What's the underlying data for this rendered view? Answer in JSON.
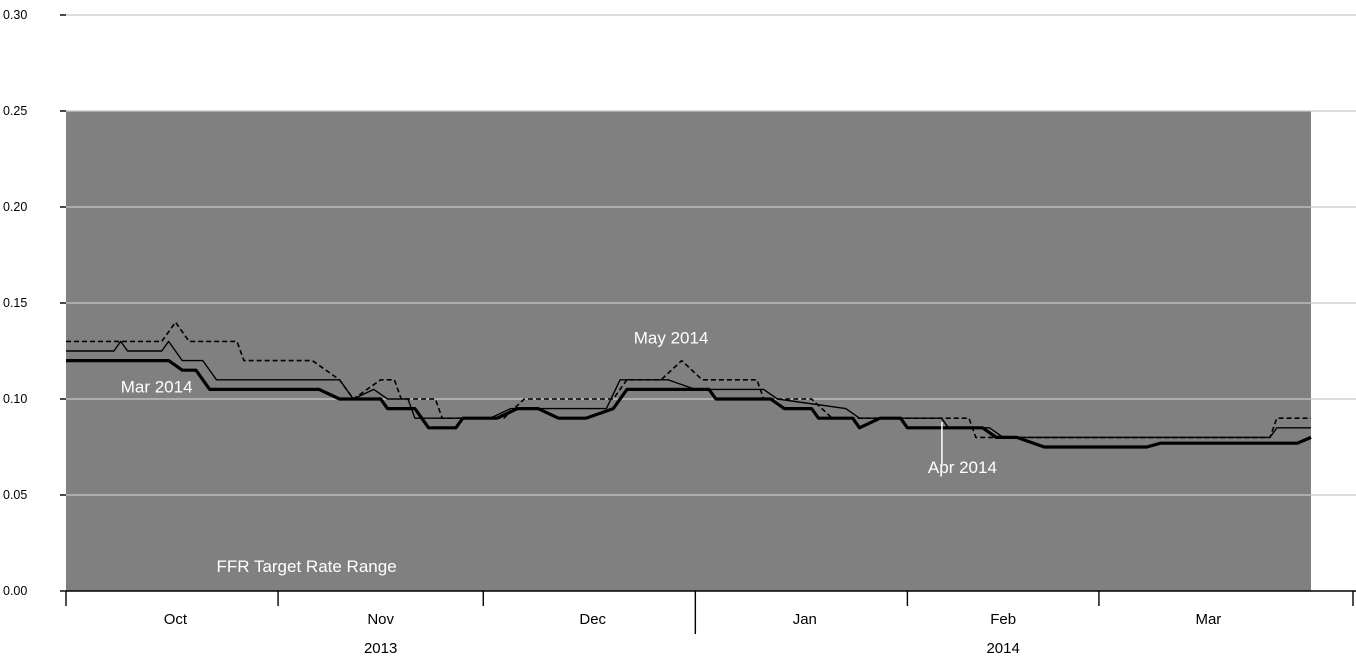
{
  "chart_data": {
    "type": "line",
    "y_axis": {
      "ylim": [
        0,
        0.3
      ],
      "ticks": [
        "0.00",
        "0.05",
        "0.10",
        "0.15",
        "0.20",
        "0.25",
        "0.30"
      ],
      "tick_values": [
        0,
        0.05,
        0.1,
        0.15,
        0.2,
        0.25,
        0.3
      ],
      "grid": true
    },
    "x_axis": {
      "start": "2013-09-30",
      "end": "2014-03-31",
      "month_labels": [
        "Oct",
        "Nov",
        "Dec",
        "Jan",
        "Feb",
        "Mar"
      ],
      "month_centers": [
        "2013-10-16",
        "2013-11-15",
        "2013-12-16",
        "2014-01-16",
        "2014-02-14",
        "2014-03-16"
      ],
      "month_boundaries": [
        "2013-10-31",
        "2013-11-30",
        "2013-12-31",
        "2014-01-31",
        "2014-02-28"
      ],
      "year_labels": [
        {
          "label": "2013",
          "center": "2013-11-15"
        },
        {
          "label": "2014",
          "center": "2014-02-14"
        }
      ]
    },
    "band": {
      "label": "FFR Target Rate Range",
      "from": 0,
      "to": 0.25,
      "color": "#808080"
    },
    "series": [
      {
        "name": "May 2014",
        "style": "dashed",
        "color": "#000000",
        "points": [
          [
            "2013-09-30",
            0.13
          ],
          [
            "2013-10-14",
            0.13
          ],
          [
            "2013-10-16",
            0.14
          ],
          [
            "2013-10-18",
            0.13
          ],
          [
            "2013-10-25",
            0.13
          ],
          [
            "2013-10-26",
            0.12
          ],
          [
            "2013-11-05",
            0.12
          ],
          [
            "2013-11-09",
            0.11
          ],
          [
            "2013-11-11",
            0.1
          ],
          [
            "2013-11-15",
            0.11
          ],
          [
            "2013-11-17",
            0.11
          ],
          [
            "2013-11-18",
            0.1
          ],
          [
            "2013-11-23",
            0.1
          ],
          [
            "2013-11-24",
            0.09
          ],
          [
            "2013-12-03",
            0.09
          ],
          [
            "2013-12-06",
            0.1
          ],
          [
            "2013-12-19",
            0.1
          ],
          [
            "2013-12-21",
            0.11
          ],
          [
            "2013-12-26",
            0.11
          ],
          [
            "2013-12-29",
            0.12
          ],
          [
            "2014-01-01",
            0.11
          ],
          [
            "2014-01-09",
            0.11
          ],
          [
            "2014-01-10",
            0.1
          ],
          [
            "2014-01-17",
            0.1
          ],
          [
            "2014-01-20",
            0.09
          ],
          [
            "2014-02-03",
            0.09
          ],
          [
            "2014-02-09",
            0.09
          ],
          [
            "2014-02-10",
            0.08
          ],
          [
            "2014-02-21",
            0.08
          ],
          [
            "2014-03-08",
            0.08
          ],
          [
            "2014-03-25",
            0.08
          ],
          [
            "2014-03-26",
            0.09
          ],
          [
            "2014-03-31",
            0.09
          ]
        ]
      },
      {
        "name": "Apr 2014",
        "style": "solid-thin",
        "color": "#000000",
        "points": [
          [
            "2013-09-30",
            0.125
          ],
          [
            "2013-10-07",
            0.125
          ],
          [
            "2013-10-08",
            0.13
          ],
          [
            "2013-10-09",
            0.125
          ],
          [
            "2013-10-14",
            0.125
          ],
          [
            "2013-10-15",
            0.13
          ],
          [
            "2013-10-17",
            0.12
          ],
          [
            "2013-10-20",
            0.12
          ],
          [
            "2013-10-22",
            0.11
          ],
          [
            "2013-11-09",
            0.11
          ],
          [
            "2013-11-11",
            0.1
          ],
          [
            "2013-11-14",
            0.105
          ],
          [
            "2013-11-16",
            0.1
          ],
          [
            "2013-11-19",
            0.1
          ],
          [
            "2013-11-20",
            0.09
          ],
          [
            "2013-12-01",
            0.09
          ],
          [
            "2013-12-04",
            0.095
          ],
          [
            "2013-12-18",
            0.095
          ],
          [
            "2013-12-20",
            0.11
          ],
          [
            "2013-12-27",
            0.11
          ],
          [
            "2013-12-31",
            0.105
          ],
          [
            "2014-01-10",
            0.105
          ],
          [
            "2014-01-12",
            0.1
          ],
          [
            "2014-01-22",
            0.095
          ],
          [
            "2014-01-24",
            0.09
          ],
          [
            "2014-02-05",
            0.09
          ],
          [
            "2014-02-06",
            0.085
          ],
          [
            "2014-02-12",
            0.085
          ],
          [
            "2014-02-14",
            0.08
          ],
          [
            "2014-03-08",
            0.08
          ],
          [
            "2014-03-25",
            0.08
          ],
          [
            "2014-03-26",
            0.085
          ],
          [
            "2014-03-31",
            0.085
          ]
        ]
      },
      {
        "name": "Mar 2014",
        "style": "solid-thick",
        "color": "#000000",
        "points": [
          [
            "2013-09-30",
            0.12
          ],
          [
            "2013-10-15",
            0.12
          ],
          [
            "2013-10-17",
            0.115
          ],
          [
            "2013-10-19",
            0.115
          ],
          [
            "2013-10-21",
            0.105
          ],
          [
            "2013-11-06",
            0.105
          ],
          [
            "2013-11-09",
            0.1
          ],
          [
            "2013-11-15",
            0.1
          ],
          [
            "2013-11-16",
            0.095
          ],
          [
            "2013-11-20",
            0.095
          ],
          [
            "2013-11-22",
            0.085
          ],
          [
            "2013-11-26",
            0.085
          ],
          [
            "2013-11-27",
            0.09
          ],
          [
            "2013-12-02",
            0.09
          ],
          [
            "2013-12-05",
            0.095
          ],
          [
            "2013-12-08",
            0.095
          ],
          [
            "2013-12-11",
            0.09
          ],
          [
            "2013-12-15",
            0.09
          ],
          [
            "2013-12-19",
            0.095
          ],
          [
            "2013-12-21",
            0.105
          ],
          [
            "2014-01-02",
            0.105
          ],
          [
            "2014-01-03",
            0.1
          ],
          [
            "2014-01-11",
            0.1
          ],
          [
            "2014-01-13",
            0.095
          ],
          [
            "2014-01-17",
            0.095
          ],
          [
            "2014-01-18",
            0.09
          ],
          [
            "2014-01-23",
            0.09
          ],
          [
            "2014-01-24",
            0.085
          ],
          [
            "2014-01-27",
            0.09
          ],
          [
            "2014-01-30",
            0.09
          ],
          [
            "2014-01-31",
            0.085
          ],
          [
            "2014-02-05",
            0.085
          ],
          [
            "2014-02-11",
            0.085
          ],
          [
            "2014-02-13",
            0.08
          ],
          [
            "2014-02-16",
            0.08
          ],
          [
            "2014-02-20",
            0.075
          ],
          [
            "2014-03-07",
            0.075
          ],
          [
            "2014-03-09",
            0.077
          ],
          [
            "2014-03-29",
            0.077
          ],
          [
            "2014-03-31",
            0.08
          ]
        ]
      }
    ],
    "annotations": [
      {
        "text": "Mar 2014",
        "date": "2013-10-08",
        "value": 0.1035,
        "color": "#ffffff"
      },
      {
        "text": "May 2014",
        "date": "2013-12-22",
        "value": 0.129,
        "color": "#ffffff"
      },
      {
        "text": "Apr 2014",
        "date": "2014-02-03",
        "value": 0.0615,
        "color": "#ffffff",
        "pointer_value_from": 0.066,
        "pointer_value_to": 0.088
      },
      {
        "text": "FFR Target Rate Range",
        "date": "2013-10-22",
        "value": 0.0098,
        "color": "#ffffff"
      }
    ],
    "colors": {
      "band": "#808080",
      "grid": "#c8c8c8",
      "axis": "#000000",
      "line": "#000000",
      "label": "#ffffff",
      "background": "#ffffff"
    }
  }
}
